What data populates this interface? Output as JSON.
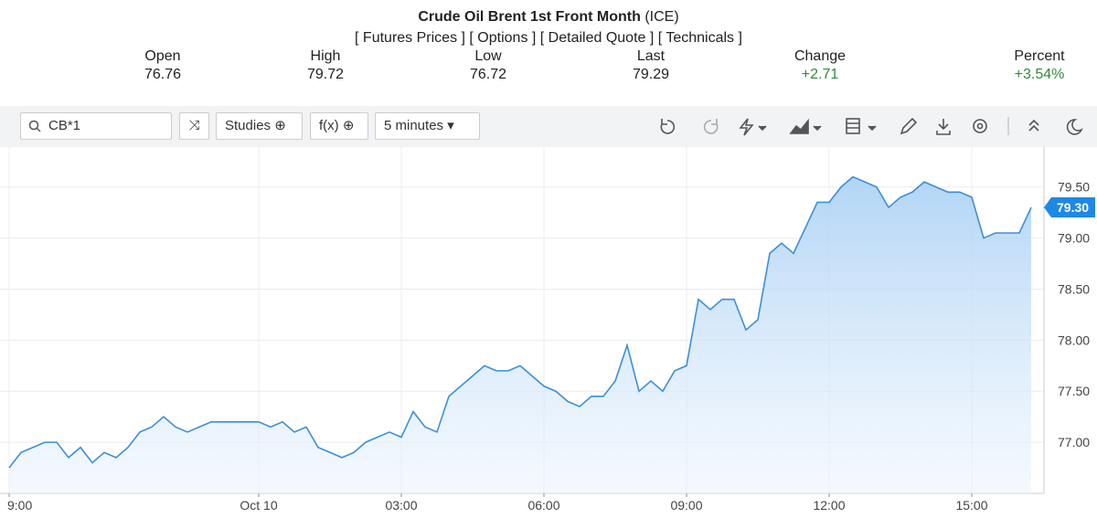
{
  "header": {
    "title": "Crude Oil Brent 1st Front Month",
    "exchange": "(ICE)",
    "links": [
      "[ Futures Prices ]",
      "[ Options ]",
      "[ Detailed Quote ]",
      "[ Technicals ]"
    ]
  },
  "quote": [
    {
      "label": "Open",
      "value": "76.76"
    },
    {
      "label": "High",
      "value": "79.72"
    },
    {
      "label": "Low",
      "value": "76.72"
    },
    {
      "label": "Last",
      "value": "79.29"
    },
    {
      "label": "Change",
      "value": "+2.71"
    },
    {
      "label": "Percent",
      "value": "+3.54%"
    }
  ],
  "toolbar": {
    "symbol": "CB*1",
    "studies": "Studies",
    "function": "f(x)",
    "interval": "5 minutes"
  },
  "chart_data": {
    "type": "area",
    "color": "#3b8fd8",
    "categories": [
      "9:00",
      null,
      null,
      null,
      null,
      null,
      null,
      null,
      null,
      null,
      null,
      null,
      null,
      null,
      null,
      null,
      null,
      null,
      null,
      null,
      null,
      "Oct 10",
      null,
      null,
      null,
      null,
      null,
      null,
      null,
      null,
      null,
      null,
      null,
      "03:00",
      null,
      null,
      null,
      null,
      null,
      null,
      null,
      null,
      null,
      null,
      null,
      "06:00",
      null,
      null,
      null,
      null,
      null,
      null,
      null,
      null,
      null,
      null,
      null,
      "09:00",
      null,
      null,
      null,
      null,
      null,
      null,
      null,
      null,
      null,
      null,
      null,
      "12:00",
      null,
      null,
      null,
      null,
      null,
      null,
      null,
      null,
      null,
      null,
      null,
      "15:00",
      null,
      null,
      null,
      null,
      null
    ],
    "values": [
      76.75,
      76.9,
      76.95,
      77.0,
      77.0,
      76.85,
      76.95,
      76.8,
      76.9,
      76.85,
      76.95,
      77.1,
      77.15,
      77.25,
      77.15,
      77.1,
      77.15,
      77.2,
      77.2,
      77.2,
      77.2,
      77.2,
      77.15,
      77.2,
      77.1,
      77.15,
      76.95,
      76.9,
      76.85,
      76.9,
      77.0,
      77.05,
      77.1,
      77.05,
      77.3,
      77.15,
      77.1,
      77.45,
      77.55,
      77.65,
      77.75,
      77.7,
      77.7,
      77.75,
      77.65,
      77.55,
      77.5,
      77.4,
      77.35,
      77.45,
      77.45,
      77.6,
      77.95,
      77.5,
      77.6,
      77.5,
      77.7,
      77.75,
      78.4,
      78.3,
      78.4,
      78.4,
      78.1,
      78.2,
      78.85,
      78.95,
      78.85,
      79.1,
      79.35,
      79.35,
      79.5,
      79.6,
      79.55,
      79.5,
      79.3,
      79.4,
      79.45,
      79.55,
      79.5,
      79.45,
      79.45,
      79.4,
      79.0,
      79.05,
      79.05,
      79.05,
      79.3
    ],
    "ylim": [
      76.5,
      79.9
    ],
    "yticks": [
      {
        "value": 77,
        "label": "77.00"
      },
      {
        "value": 77.5,
        "label": "77.50"
      },
      {
        "value": 78,
        "label": "78.00"
      },
      {
        "value": 78.5,
        "label": "78.50"
      },
      {
        "value": 79,
        "label": "79.00"
      },
      {
        "value": 79.5,
        "label": "79.50"
      }
    ],
    "last_price": {
      "value": 79.3,
      "label": "79.30"
    },
    "grid": true
  }
}
